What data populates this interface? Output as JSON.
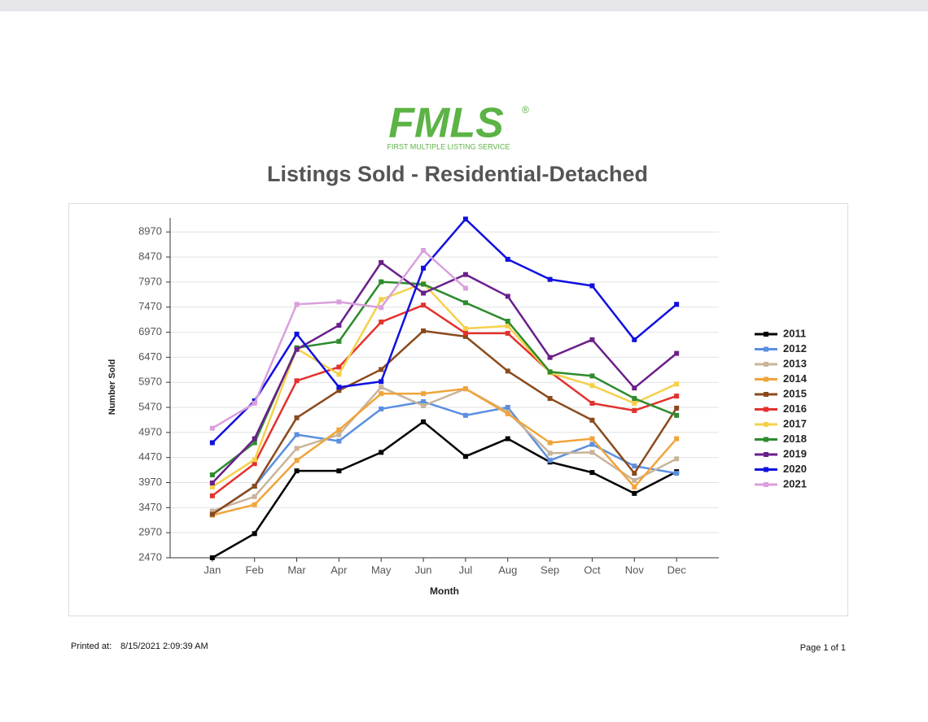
{
  "header": {
    "logo": "FMLS",
    "logo_mark": "®",
    "logo_subtitle": "FIRST MULTIPLE LISTING SERVICE"
  },
  "footer": {
    "printed_label": "Printed at:",
    "printed_value": "8/15/2021 2:09:39 AM",
    "page": "Page 1 of 1"
  },
  "chart_data": {
    "type": "line",
    "title": "Listings Sold - Residential-Detached",
    "x_label": "Month",
    "y_label": "Number Sold",
    "categories": [
      "Jan",
      "Feb",
      "Mar",
      "Apr",
      "May",
      "Jun",
      "Jul",
      "Aug",
      "Sep",
      "Oct",
      "Nov",
      "Dec"
    ],
    "ylim": [
      2470,
      9250
    ],
    "yticks": [
      2470,
      2970,
      3470,
      3970,
      4470,
      4970,
      5470,
      5970,
      6470,
      6970,
      7470,
      7970,
      8470,
      8970
    ],
    "grid": true,
    "legend": "right",
    "series": [
      {
        "name": "2011",
        "color": "#000000",
        "values": [
          2470,
          2952,
          4203,
          4203,
          4573,
          5182,
          4492,
          4845,
          4380,
          4171,
          3754,
          4187
        ]
      },
      {
        "name": "2012",
        "color": "#5b8fe0",
        "values": [
          3337,
          3898,
          4926,
          4797,
          5439,
          5584,
          5311,
          5471,
          4412,
          4733,
          4300,
          4155
        ]
      },
      {
        "name": "2013",
        "color": "#c8b49a",
        "values": [
          3401,
          3690,
          4653,
          4926,
          5873,
          5503,
          5841,
          5375,
          4556,
          4573,
          4011,
          4444
        ]
      },
      {
        "name": "2014",
        "color": "#f0a43a",
        "values": [
          3321,
          3529,
          4412,
          5022,
          5744,
          5744,
          5841,
          5343,
          4765,
          4845,
          3882,
          4845
        ]
      },
      {
        "name": "2015",
        "color": "#8b4a1c",
        "values": [
          3337,
          3898,
          5263,
          5808,
          6226,
          6996,
          6884,
          6194,
          5648,
          5215,
          4155,
          5455
        ]
      },
      {
        "name": "2016",
        "color": "#e2322e",
        "values": [
          3706,
          4348,
          6001,
          6274,
          7173,
          7510,
          6948,
          6948,
          6178,
          5552,
          5407,
          5696
        ]
      },
      {
        "name": "2017",
        "color": "#f5d14a",
        "values": [
          3882,
          4428,
          6643,
          6129,
          7622,
          7943,
          7044,
          7092,
          6162,
          5905,
          5552,
          5937
        ]
      },
      {
        "name": "2018",
        "color": "#2e8b2e",
        "values": [
          4123,
          4765,
          6659,
          6787,
          7975,
          7927,
          7558,
          7189,
          6178,
          6097,
          5648,
          5311
        ]
      },
      {
        "name": "2019",
        "color": "#6a1f8a",
        "values": [
          3963,
          4845,
          6627,
          7108,
          8360,
          7750,
          8120,
          7686,
          6466,
          6820,
          5857,
          6547
        ]
      },
      {
        "name": "2020",
        "color": "#1010e0",
        "values": [
          4765,
          5600,
          6932,
          5873,
          5985,
          8248,
          9227,
          8424,
          8023,
          7895,
          6820,
          7526
        ]
      },
      {
        "name": "2021",
        "color": "#d9a0dc",
        "values": [
          5054,
          5552,
          7526,
          7574,
          7462,
          8601,
          7847,
          null,
          null,
          null,
          null,
          null
        ]
      }
    ]
  }
}
